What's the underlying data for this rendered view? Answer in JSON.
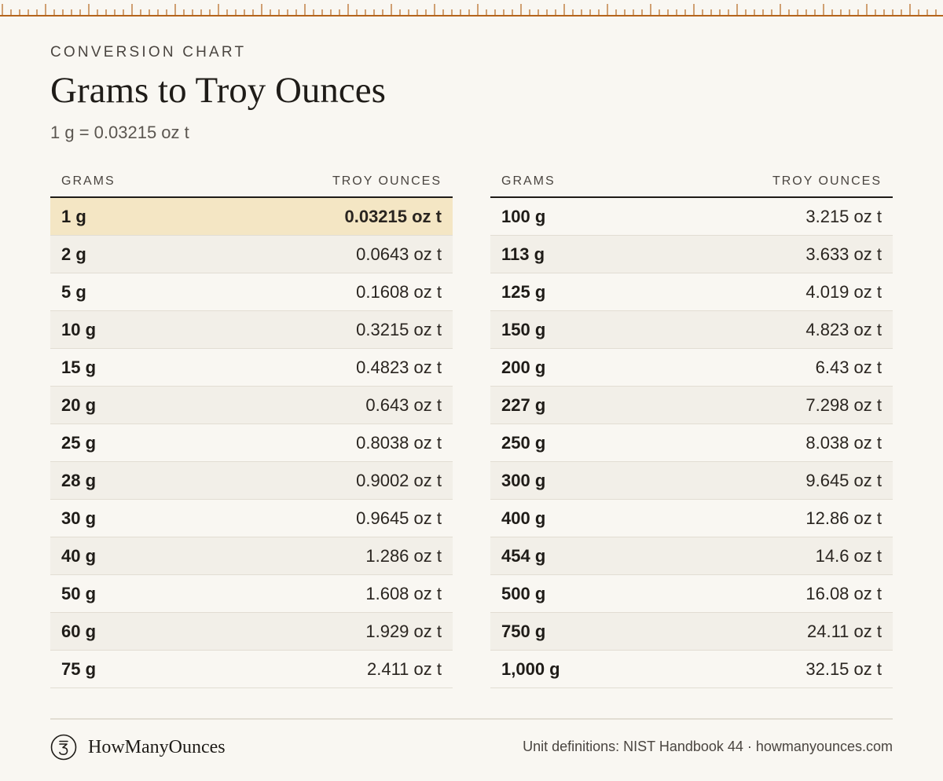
{
  "header": {
    "eyebrow": "CONVERSION CHART",
    "title": "Grams to Troy Ounces",
    "subtitle": "1 g = 0.03215 oz t"
  },
  "columns": {
    "grams": "GRAMS",
    "troy": "TROY OUNCES"
  },
  "left_rows": [
    {
      "g": "1 g",
      "oz": "0.03215 oz t"
    },
    {
      "g": "2 g",
      "oz": "0.0643 oz t"
    },
    {
      "g": "5 g",
      "oz": "0.1608 oz t"
    },
    {
      "g": "10 g",
      "oz": "0.3215 oz t"
    },
    {
      "g": "15 g",
      "oz": "0.4823 oz t"
    },
    {
      "g": "20 g",
      "oz": "0.643 oz t"
    },
    {
      "g": "25 g",
      "oz": "0.8038 oz t"
    },
    {
      "g": "28 g",
      "oz": "0.9002 oz t"
    },
    {
      "g": "30 g",
      "oz": "0.9645 oz t"
    },
    {
      "g": "40 g",
      "oz": "1.286 oz t"
    },
    {
      "g": "50 g",
      "oz": "1.608 oz t"
    },
    {
      "g": "60 g",
      "oz": "1.929 oz t"
    },
    {
      "g": "75 g",
      "oz": "2.411 oz t"
    }
  ],
  "right_rows": [
    {
      "g": "100 g",
      "oz": "3.215 oz t"
    },
    {
      "g": "113 g",
      "oz": "3.633 oz t"
    },
    {
      "g": "125 g",
      "oz": "4.019 oz t"
    },
    {
      "g": "150 g",
      "oz": "4.823 oz t"
    },
    {
      "g": "200 g",
      "oz": "6.43 oz t"
    },
    {
      "g": "227 g",
      "oz": "7.298 oz t"
    },
    {
      "g": "250 g",
      "oz": "8.038 oz t"
    },
    {
      "g": "300 g",
      "oz": "9.645 oz t"
    },
    {
      "g": "400 g",
      "oz": "12.86 oz t"
    },
    {
      "g": "454 g",
      "oz": "14.6 oz t"
    },
    {
      "g": "500 g",
      "oz": "16.08 oz t"
    },
    {
      "g": "750 g",
      "oz": "24.11 oz t"
    },
    {
      "g": "1,000 g",
      "oz": "32.15 oz t"
    }
  ],
  "footer": {
    "brand": "HowManyOunces",
    "source": "Unit definitions: NIST Handbook 44 · howmanyounces.com"
  },
  "colors": {
    "background": "#f9f7f2",
    "highlight": "#f4e6c4",
    "ruler": "#b5651d"
  },
  "icons": {
    "logo": "stylized-3-in-circle-icon"
  }
}
